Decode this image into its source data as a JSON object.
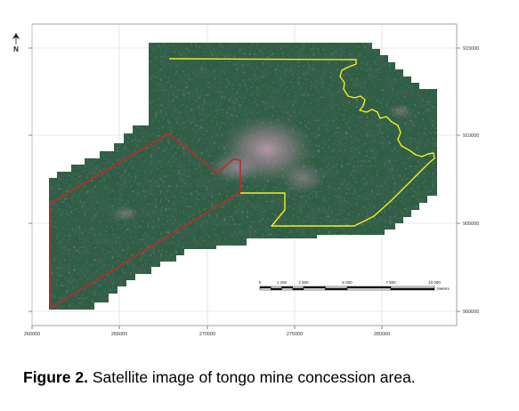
{
  "figure": {
    "caption_label": "Figure 2.",
    "caption_text": "Satellite image of tongo mine concession area."
  },
  "map": {
    "north_arrow": {
      "letter": "N",
      "icon": "north-arrow-icon"
    },
    "x_ticks": [
      "260000",
      "265000",
      "270000",
      "275000",
      "280000"
    ],
    "y_ticks": [
      "915000",
      "910000",
      "905000",
      "900000"
    ],
    "scalebar": {
      "labels": [
        "0",
        "1 250",
        "2 500",
        "5 000",
        "7 500",
        "10 000"
      ],
      "unit": "Meters"
    },
    "boundaries": [
      {
        "name": "red-concession-boundary",
        "color": "#c0282d"
      },
      {
        "name": "yellow-concession-boundary",
        "color": "#f3f01c"
      }
    ],
    "imagery_color": "#2f5e45",
    "urban_color": "#a98b99"
  }
}
